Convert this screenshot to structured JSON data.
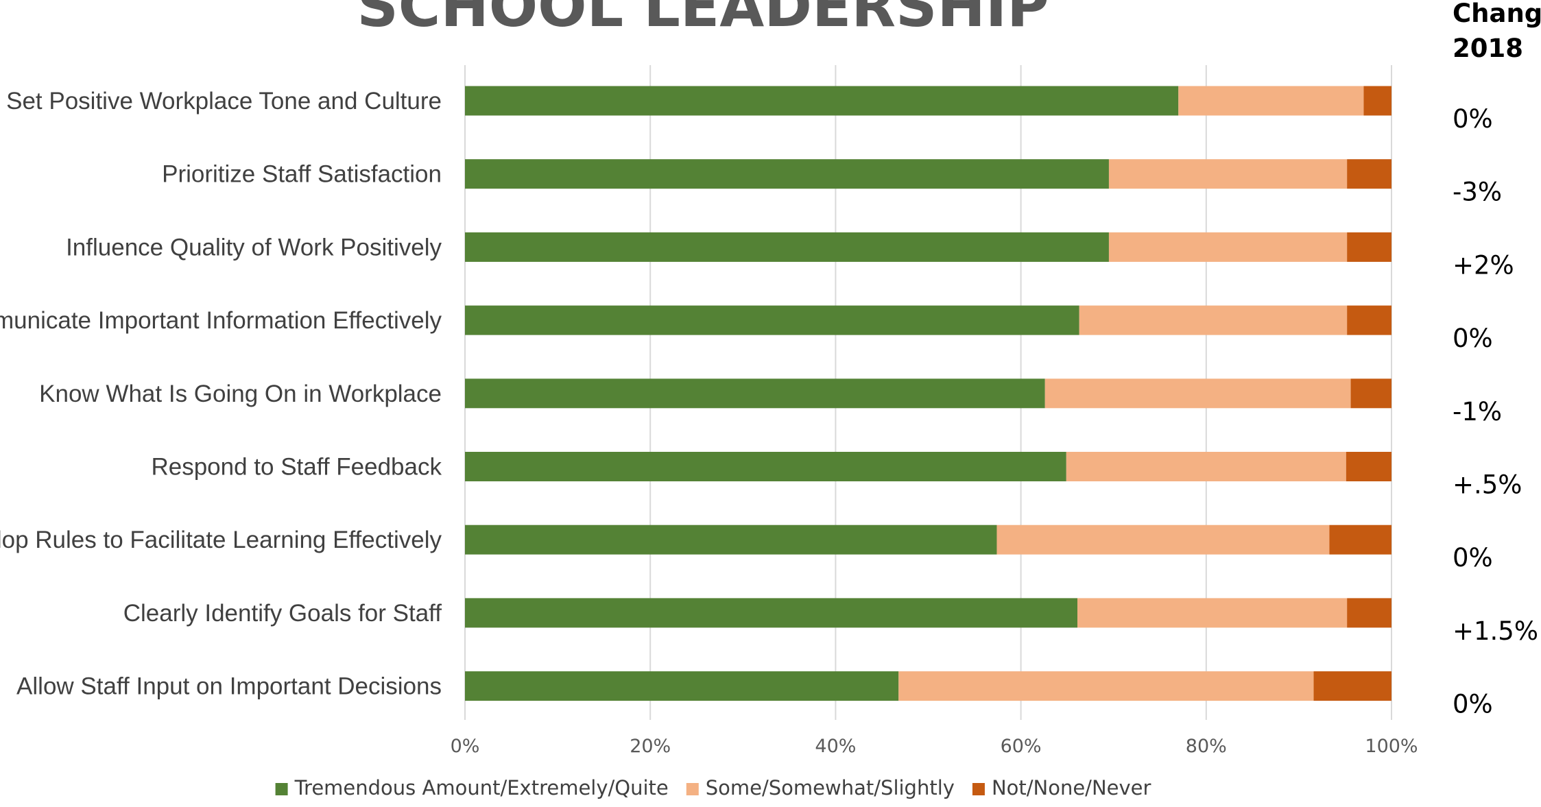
{
  "chart_data": {
    "type": "bar",
    "orientation": "horizontal",
    "stacked": true,
    "title": "SCHOOL LEADERSHIP",
    "categories": [
      "Set Positive Workplace Tone and Culture",
      "Prioritize Staff Satisfaction",
      "Influence Quality of Work Positively",
      "Communicate Important Information Effectively",
      "Know What Is Going On in Workplace",
      "Respond to Staff Feedback",
      "Develop Rules to Facilitate Learning Effectively",
      "Clearly Identify Goals for Staff",
      "Allow Staff Input on Important Decisions"
    ],
    "series": [
      {
        "name": "Tremendous Amount/Extremely/Quite",
        "color": "#548235",
        "values": [
          77,
          69.5,
          69.5,
          66.3,
          62.6,
          64.9,
          57.4,
          66.1,
          46.8
        ]
      },
      {
        "name": "Some/Somewhat/Slightly",
        "color": "#f4b183",
        "values": [
          20,
          25.7,
          25.7,
          28.9,
          33,
          30.2,
          35.9,
          29.1,
          44.8
        ]
      },
      {
        "name": "Not/None/Never",
        "color": "#c55a11",
        "values": [
          3,
          4.8,
          4.8,
          4.8,
          4.4,
          4.9,
          6.7,
          4.8,
          8.4
        ]
      }
    ],
    "x_ticks": [
      "0%",
      "20%",
      "40%",
      "60%",
      "80%",
      "100%"
    ],
    "xlim": [
      0,
      100
    ],
    "grid": true,
    "legend_position": "bottom",
    "change_column": {
      "header_line1": "Change",
      "header_line2": "2018",
      "values": [
        "0%",
        "-3%",
        "+2%",
        "0%",
        "-1%",
        "+.5%",
        "0%",
        "+1.5%",
        "0%"
      ]
    }
  }
}
